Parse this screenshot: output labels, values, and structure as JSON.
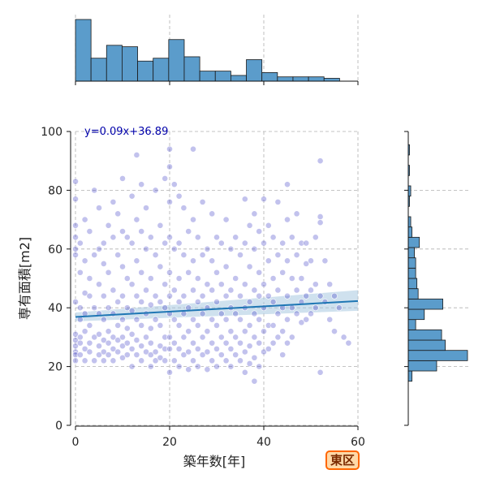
{
  "badge": {
    "label": "東区"
  },
  "chart_data": {
    "type": "scatter",
    "title": "",
    "xlabel": "築年数[年]",
    "ylabel": "専有面積[m2]",
    "xlim": [
      0,
      60
    ],
    "ylim": [
      0,
      100
    ],
    "xticks": [
      0,
      20,
      40,
      60
    ],
    "yticks": [
      0,
      20,
      40,
      60,
      80,
      100
    ],
    "grid": true,
    "colors": {
      "points": "#4040c8",
      "bars": "#5b9ccb",
      "bar_edge": "#1a1a1a",
      "regression": "#1f77b4",
      "band": "#a8c8e0",
      "equation": "#0000aa"
    },
    "regression": {
      "equation": "y=0.09x+36.89",
      "slope": 0.09,
      "intercept": 36.89,
      "ci_at_x_max": [
        39,
        46
      ]
    },
    "points": [
      [
        0,
        83
      ],
      [
        0,
        77
      ],
      [
        0,
        68
      ],
      [
        0,
        64
      ],
      [
        0,
        60
      ],
      [
        0,
        58
      ],
      [
        0,
        42
      ],
      [
        0,
        31
      ],
      [
        0,
        29
      ],
      [
        0,
        27
      ],
      [
        0,
        25
      ],
      [
        0,
        24
      ],
      [
        0,
        22
      ],
      [
        1,
        62
      ],
      [
        1,
        52
      ],
      [
        1,
        40
      ],
      [
        1,
        36
      ],
      [
        1,
        30
      ],
      [
        1,
        28
      ],
      [
        1,
        24
      ],
      [
        2,
        70
      ],
      [
        2,
        56
      ],
      [
        2,
        45
      ],
      [
        2,
        38
      ],
      [
        2,
        32
      ],
      [
        2,
        26
      ],
      [
        2,
        22
      ],
      [
        3,
        66
      ],
      [
        3,
        50
      ],
      [
        3,
        44
      ],
      [
        3,
        34
      ],
      [
        3,
        28
      ],
      [
        3,
        25
      ],
      [
        4,
        80
      ],
      [
        4,
        58
      ],
      [
        4,
        40
      ],
      [
        4,
        30
      ],
      [
        4,
        22
      ],
      [
        5,
        74
      ],
      [
        5,
        60
      ],
      [
        5,
        48
      ],
      [
        5,
        38
      ],
      [
        5,
        31
      ],
      [
        5,
        27
      ],
      [
        5,
        24
      ],
      [
        6,
        62
      ],
      [
        6,
        55
      ],
      [
        6,
        44
      ],
      [
        6,
        36
      ],
      [
        6,
        29
      ],
      [
        6,
        25
      ],
      [
        6,
        22
      ],
      [
        7,
        68
      ],
      [
        7,
        52
      ],
      [
        7,
        40
      ],
      [
        7,
        32
      ],
      [
        7,
        28
      ],
      [
        7,
        24
      ],
      [
        8,
        76
      ],
      [
        8,
        64
      ],
      [
        8,
        46
      ],
      [
        8,
        38
      ],
      [
        8,
        30
      ],
      [
        8,
        26
      ],
      [
        8,
        22
      ],
      [
        9,
        72
      ],
      [
        9,
        58
      ],
      [
        9,
        42
      ],
      [
        9,
        34
      ],
      [
        9,
        29
      ],
      [
        9,
        25
      ],
      [
        10,
        84
      ],
      [
        10,
        66
      ],
      [
        10,
        54
      ],
      [
        10,
        44
      ],
      [
        10,
        36
      ],
      [
        10,
        30
      ],
      [
        10,
        27
      ],
      [
        10,
        23
      ],
      [
        11,
        64
      ],
      [
        11,
        50
      ],
      [
        11,
        40
      ],
      [
        11,
        33
      ],
      [
        11,
        28
      ],
      [
        11,
        24
      ],
      [
        12,
        78
      ],
      [
        12,
        62
      ],
      [
        12,
        48
      ],
      [
        12,
        39
      ],
      [
        12,
        31
      ],
      [
        12,
        26
      ],
      [
        12,
        20
      ],
      [
        13,
        92
      ],
      [
        13,
        70
      ],
      [
        13,
        56
      ],
      [
        13,
        44
      ],
      [
        13,
        36
      ],
      [
        13,
        29
      ],
      [
        13,
        24
      ],
      [
        14,
        82
      ],
      [
        14,
        66
      ],
      [
        14,
        52
      ],
      [
        14,
        42
      ],
      [
        14,
        34
      ],
      [
        14,
        27
      ],
      [
        14,
        22
      ],
      [
        15,
        74
      ],
      [
        15,
        60
      ],
      [
        15,
        46
      ],
      [
        15,
        38
      ],
      [
        15,
        30
      ],
      [
        15,
        25
      ],
      [
        16,
        64
      ],
      [
        16,
        50
      ],
      [
        16,
        41
      ],
      [
        16,
        33
      ],
      [
        16,
        28
      ],
      [
        16,
        24
      ],
      [
        16,
        20
      ],
      [
        17,
        80
      ],
      [
        17,
        58
      ],
      [
        17,
        44
      ],
      [
        17,
        36
      ],
      [
        17,
        25
      ],
      [
        17,
        22
      ],
      [
        18,
        68
      ],
      [
        18,
        54
      ],
      [
        18,
        42
      ],
      [
        18,
        34
      ],
      [
        18,
        27
      ],
      [
        18,
        23
      ],
      [
        19,
        84
      ],
      [
        19,
        62
      ],
      [
        19,
        48
      ],
      [
        19,
        40
      ],
      [
        19,
        30
      ],
      [
        19,
        26
      ],
      [
        19,
        22
      ],
      [
        20,
        94
      ],
      [
        20,
        88
      ],
      [
        20,
        76
      ],
      [
        20,
        64
      ],
      [
        20,
        52
      ],
      [
        20,
        44
      ],
      [
        20,
        38
      ],
      [
        20,
        30
      ],
      [
        20,
        26
      ],
      [
        20,
        18
      ],
      [
        21,
        82
      ],
      [
        21,
        60
      ],
      [
        21,
        46
      ],
      [
        21,
        36
      ],
      [
        21,
        28
      ],
      [
        21,
        22
      ],
      [
        22,
        78
      ],
      [
        22,
        62
      ],
      [
        22,
        50
      ],
      [
        22,
        42
      ],
      [
        22,
        34
      ],
      [
        22,
        26
      ],
      [
        22,
        20
      ],
      [
        23,
        74
      ],
      [
        23,
        58
      ],
      [
        23,
        44
      ],
      [
        23,
        38
      ],
      [
        23,
        30
      ],
      [
        23,
        24
      ],
      [
        24,
        66
      ],
      [
        24,
        52
      ],
      [
        24,
        40
      ],
      [
        24,
        32
      ],
      [
        24,
        25
      ],
      [
        24,
        19
      ],
      [
        25,
        94
      ],
      [
        25,
        70
      ],
      [
        25,
        56
      ],
      [
        25,
        46
      ],
      [
        25,
        36
      ],
      [
        25,
        28
      ],
      [
        25,
        22
      ],
      [
        26,
        64
      ],
      [
        26,
        50
      ],
      [
        26,
        42
      ],
      [
        26,
        34
      ],
      [
        26,
        26
      ],
      [
        26,
        20
      ],
      [
        27,
        76
      ],
      [
        27,
        58
      ],
      [
        27,
        44
      ],
      [
        27,
        38
      ],
      [
        27,
        30
      ],
      [
        27,
        24
      ],
      [
        28,
        60
      ],
      [
        28,
        48
      ],
      [
        28,
        40
      ],
      [
        28,
        32
      ],
      [
        28,
        25
      ],
      [
        28,
        19
      ],
      [
        29,
        72
      ],
      [
        29,
        56
      ],
      [
        29,
        46
      ],
      [
        29,
        36
      ],
      [
        29,
        28
      ],
      [
        29,
        22
      ],
      [
        30,
        64
      ],
      [
        30,
        52
      ],
      [
        30,
        42
      ],
      [
        30,
        34
      ],
      [
        30,
        26
      ],
      [
        30,
        20
      ],
      [
        31,
        62
      ],
      [
        31,
        48
      ],
      [
        31,
        38
      ],
      [
        31,
        30
      ],
      [
        31,
        24
      ],
      [
        32,
        70
      ],
      [
        32,
        54
      ],
      [
        32,
        44
      ],
      [
        32,
        36
      ],
      [
        32,
        28
      ],
      [
        32,
        22
      ],
      [
        33,
        60
      ],
      [
        33,
        46
      ],
      [
        33,
        40
      ],
      [
        33,
        32
      ],
      [
        33,
        26
      ],
      [
        33,
        20
      ],
      [
        34,
        64
      ],
      [
        34,
        50
      ],
      [
        34,
        38
      ],
      [
        34,
        30
      ],
      [
        34,
        24
      ],
      [
        35,
        58
      ],
      [
        35,
        44
      ],
      [
        35,
        36
      ],
      [
        35,
        28
      ],
      [
        35,
        22
      ],
      [
        36,
        77
      ],
      [
        36,
        62
      ],
      [
        36,
        48
      ],
      [
        36,
        40
      ],
      [
        36,
        32
      ],
      [
        36,
        25
      ],
      [
        36,
        18
      ],
      [
        37,
        68
      ],
      [
        37,
        54
      ],
      [
        37,
        42
      ],
      [
        37,
        34
      ],
      [
        37,
        27
      ],
      [
        37,
        21
      ],
      [
        38,
        72
      ],
      [
        38,
        60
      ],
      [
        38,
        46
      ],
      [
        38,
        38
      ],
      [
        38,
        30
      ],
      [
        38,
        23
      ],
      [
        38,
        15
      ],
      [
        39,
        66
      ],
      [
        39,
        52
      ],
      [
        39,
        44
      ],
      [
        39,
        36
      ],
      [
        39,
        28
      ],
      [
        39,
        20
      ],
      [
        40,
        77
      ],
      [
        40,
        62
      ],
      [
        40,
        48
      ],
      [
        40,
        40
      ],
      [
        40,
        32
      ],
      [
        40,
        25
      ],
      [
        41,
        68
      ],
      [
        41,
        56
      ],
      [
        41,
        44
      ],
      [
        41,
        34
      ],
      [
        41,
        26
      ],
      [
        42,
        64
      ],
      [
        42,
        50
      ],
      [
        42,
        42
      ],
      [
        42,
        34
      ],
      [
        42,
        28
      ],
      [
        43,
        76
      ],
      [
        43,
        58
      ],
      [
        43,
        46
      ],
      [
        43,
        38
      ],
      [
        43,
        30
      ],
      [
        44,
        62
      ],
      [
        44,
        52
      ],
      [
        44,
        40
      ],
      [
        44,
        32
      ],
      [
        44,
        24
      ],
      [
        45,
        82
      ],
      [
        45,
        70
      ],
      [
        45,
        56
      ],
      [
        45,
        44
      ],
      [
        45,
        36
      ],
      [
        45,
        28
      ],
      [
        46,
        64
      ],
      [
        46,
        50
      ],
      [
        46,
        40
      ],
      [
        46,
        30
      ],
      [
        47,
        72
      ],
      [
        47,
        58
      ],
      [
        47,
        46
      ],
      [
        47,
        38
      ],
      [
        48,
        62
      ],
      [
        48,
        50
      ],
      [
        48,
        42
      ],
      [
        48,
        35
      ],
      [
        49,
        62
      ],
      [
        49,
        55
      ],
      [
        49,
        44
      ],
      [
        49,
        36
      ],
      [
        50,
        56
      ],
      [
        50,
        46
      ],
      [
        50,
        38
      ],
      [
        51,
        64
      ],
      [
        51,
        48
      ],
      [
        51,
        40
      ],
      [
        52,
        90
      ],
      [
        52,
        71
      ],
      [
        52,
        69
      ],
      [
        52,
        44
      ],
      [
        52,
        18
      ],
      [
        53,
        56
      ],
      [
        53,
        42
      ],
      [
        54,
        48
      ],
      [
        54,
        36
      ],
      [
        55,
        44
      ],
      [
        55,
        32
      ],
      [
        56,
        40
      ],
      [
        57,
        30
      ],
      [
        58,
        28
      ]
    ],
    "top_histogram": {
      "bin_edges": [
        0,
        3.3,
        6.6,
        9.9,
        13.2,
        16.5,
        19.8,
        23.1,
        26.4,
        29.7,
        33,
        36.3,
        39.6,
        42.9,
        46.2,
        49.5,
        52.8,
        56.1,
        59.4
      ],
      "counts": [
        43,
        16,
        25,
        24,
        14,
        16,
        29,
        17,
        7,
        7,
        4,
        15,
        6,
        3,
        3,
        3,
        2,
        0
      ]
    },
    "right_histogram": {
      "bin_edges": [
        15,
        18.5,
        22,
        25.5,
        29,
        32.5,
        36,
        39.5,
        43,
        46.5,
        50,
        53.5,
        57,
        60.5,
        64,
        67.5,
        71,
        74.5,
        78,
        81.5,
        85,
        88.5,
        92,
        95.5,
        99
      ],
      "counts": [
        3,
        23,
        48,
        30,
        27,
        6,
        13,
        28,
        8,
        7,
        6,
        6,
        5,
        9,
        3,
        2,
        0,
        1,
        2,
        0,
        1,
        0,
        1,
        0,
        0
      ]
    }
  }
}
